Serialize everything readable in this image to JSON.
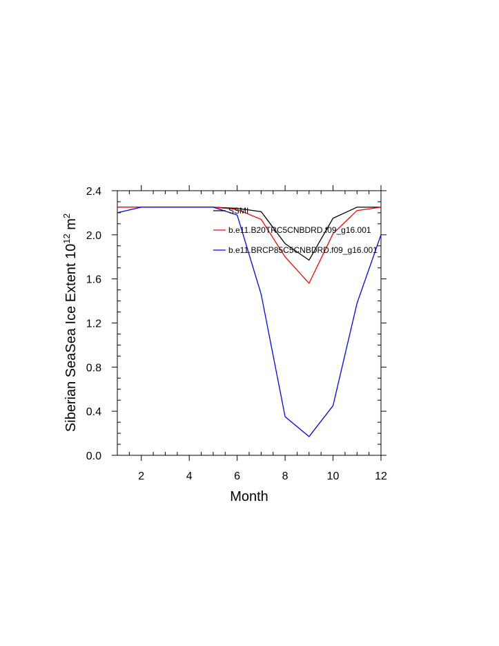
{
  "chart_data": {
    "type": "line",
    "title": "",
    "xlabel": "Month",
    "ylabel": "Siberian SeaSea Ice Extent 10",
    "ylabel_sup1": "12",
    "ylabel_mid": " m",
    "ylabel_sup2": "2",
    "xlim": [
      1,
      12
    ],
    "ylim": [
      0,
      2.4
    ],
    "x_ticks": [
      2,
      4,
      6,
      8,
      10,
      12
    ],
    "x_tick_labels": [
      "2",
      "4",
      "6",
      "8",
      "10",
      "12"
    ],
    "y_ticks": [
      0,
      0.4,
      0.8,
      1.2,
      1.6,
      2.0,
      2.4
    ],
    "y_tick_labels": [
      "0.0",
      "0.4",
      "0.8",
      "1.2",
      "1.6",
      "2.0",
      "2.4"
    ],
    "grid": false,
    "legend_position": "top-right",
    "x": [
      1,
      2,
      3,
      4,
      5,
      6,
      7,
      8,
      9,
      10,
      11,
      12
    ],
    "series": [
      {
        "name": "SSMI",
        "color": "#000000",
        "values": [
          2.25,
          2.25,
          2.25,
          2.25,
          2.25,
          2.24,
          2.21,
          1.92,
          1.77,
          2.15,
          2.25,
          2.25
        ]
      },
      {
        "name": "b.e11.B20TRC5CNBDRD.f09_g16.001",
        "color": "#ff0000",
        "values": [
          2.25,
          2.25,
          2.25,
          2.25,
          2.25,
          2.23,
          2.14,
          1.8,
          1.56,
          2.01,
          2.22,
          2.25
        ]
      },
      {
        "name": "b.e11.BRCP85C5CNBDRD.f09_g16.001",
        "color": "#0000ff",
        "values": [
          2.2,
          2.25,
          2.25,
          2.25,
          2.25,
          2.18,
          1.46,
          0.35,
          0.17,
          0.45,
          1.38,
          2.0
        ]
      }
    ]
  }
}
